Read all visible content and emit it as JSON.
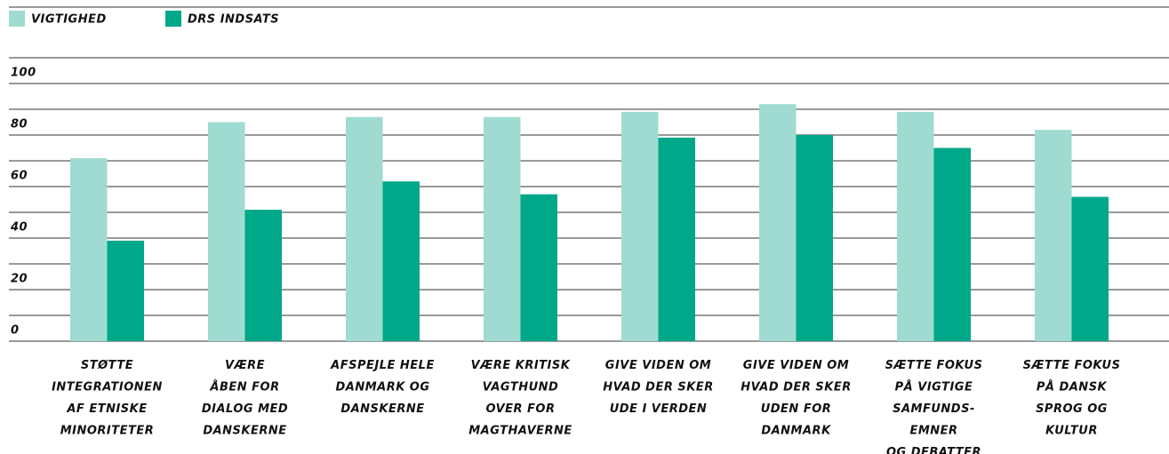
{
  "chart_data": {
    "type": "bar",
    "categories": [
      [
        "STØTTE",
        "INTEGRATIONEN",
        "AF ETNISKE",
        "MINORITETER"
      ],
      [
        "VÆRE",
        "ÅBEN FOR",
        "DIALOG MED",
        "DANSKERNE"
      ],
      [
        "AFSPEJLE HELE",
        "DANMARK OG",
        "DANSKERNE"
      ],
      [
        "VÆRE KRITISK",
        "VAGTHUND",
        "OVER FOR",
        "MAGTHAVERNE"
      ],
      [
        "GIVE VIDEN OM",
        "HVAD DER SKER",
        "UDE I VERDEN"
      ],
      [
        "GIVE VIDEN OM",
        "HVAD DER SKER",
        "UDEN FOR",
        "DANMARK"
      ],
      [
        "SÆTTE FOKUS",
        "PÅ VIGTIGE",
        "SAMFUNDS-",
        "EMNER",
        "OG DEBATTER"
      ],
      [
        "SÆTTE FOKUS",
        "PÅ DANSK",
        "SPROG OG",
        "KULTUR"
      ]
    ],
    "series": [
      {
        "name": "VIGTIGHED",
        "color": "#9fdbd0",
        "values": [
          71,
          85,
          87,
          87,
          89,
          92,
          89,
          82
        ]
      },
      {
        "name": "DRS INDSATS",
        "color": "#00a88a",
        "values": [
          39,
          51,
          62,
          57,
          79,
          80,
          75,
          56
        ]
      }
    ],
    "ylim": [
      0,
      110
    ],
    "yticks": [
      0,
      20,
      40,
      60,
      80,
      100
    ],
    "minor_yticks": [
      10,
      30,
      50,
      70,
      90,
      110
    ],
    "grid": true,
    "legend": "top-left"
  }
}
